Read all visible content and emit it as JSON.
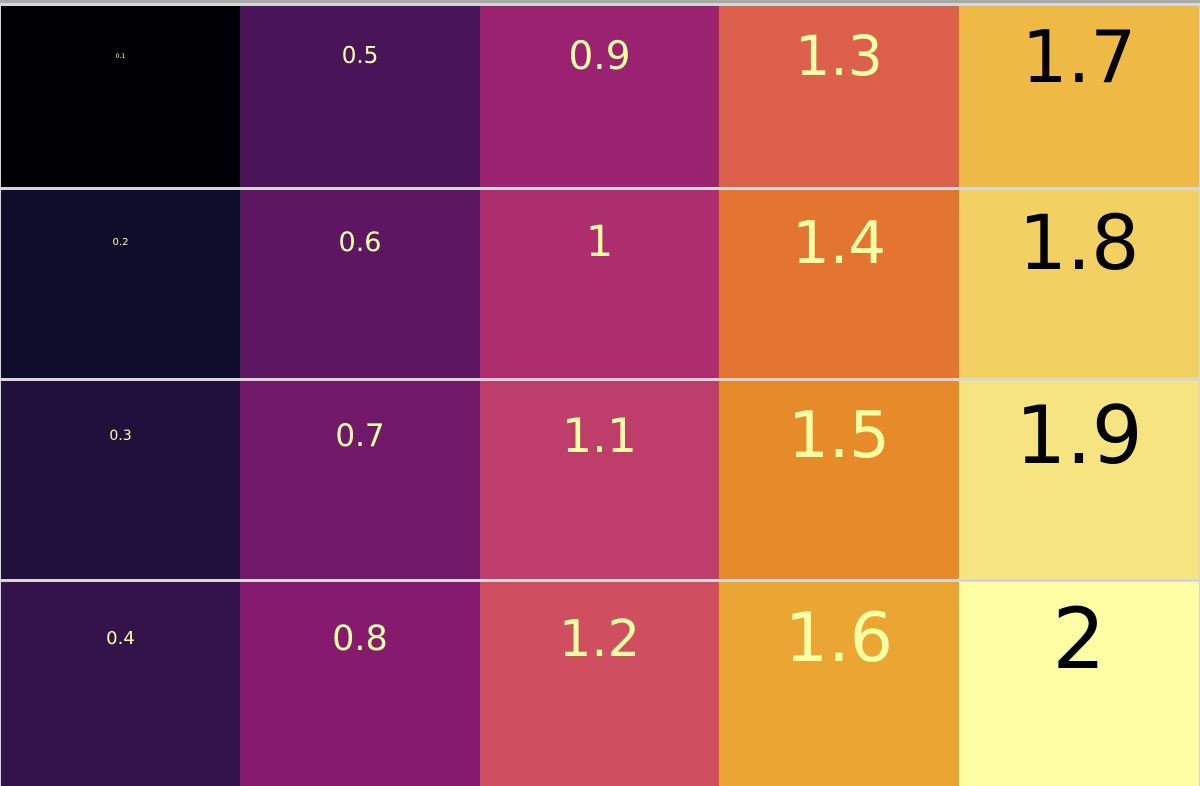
{
  "tiles": [
    {
      "label": "0.1",
      "bg": "#000004",
      "fg": "#fcffa4"
    },
    {
      "label": "0.2",
      "bg": "#0f0d2b",
      "fg": "#fcffa4"
    },
    {
      "label": "0.3",
      "bg": "#22103c",
      "fg": "#fcffa4"
    },
    {
      "label": "0.4",
      "bg": "#33134a",
      "fg": "#fcffa4"
    },
    {
      "label": "0.5",
      "bg": "#4a1458",
      "fg": "#fcffa4"
    },
    {
      "label": "0.6",
      "bg": "#5d1762",
      "fg": "#fcffa4"
    },
    {
      "label": "0.7",
      "bg": "#711868",
      "fg": "#fcffa4"
    },
    {
      "label": "0.8",
      "bg": "#861a6e",
      "fg": "#fcffa4"
    },
    {
      "label": "0.9",
      "bg": "#9b2271",
      "fg": "#fcffa4"
    },
    {
      "label": "1",
      "bg": "#ad2e6f",
      "fg": "#fcffa4"
    },
    {
      "label": "1.1",
      "bg": "#bf3d6b",
      "fg": "#fcffa4"
    },
    {
      "label": "1.2",
      "bg": "#cf4f60",
      "fg": "#fcffa4"
    },
    {
      "label": "1.3",
      "bg": "#dd604d",
      "fg": "#fcffa4"
    },
    {
      "label": "1.4",
      "bg": "#e47431",
      "fg": "#fcffa4"
    },
    {
      "label": "1.5",
      "bg": "#e78a29",
      "fg": "#fcffa4"
    },
    {
      "label": "1.6",
      "bg": "#eaa532",
      "fg": "#fcffa4"
    },
    {
      "label": "1.7",
      "bg": "#efb946",
      "fg": "#000000"
    },
    {
      "label": "1.8",
      "bg": "#f2d062",
      "fg": "#000000"
    },
    {
      "label": "1.9",
      "bg": "#f5e47f",
      "fg": "#000000"
    },
    {
      "label": "2",
      "bg": "#fdfea3",
      "fg": "#000000"
    }
  ]
}
